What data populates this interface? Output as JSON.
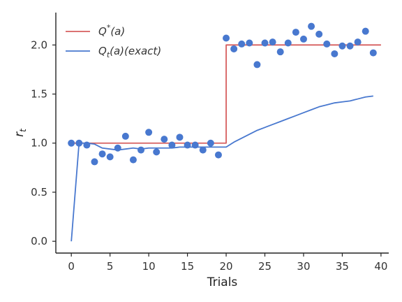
{
  "chart_data": {
    "type": "line",
    "xlabel": "Trials",
    "ylabel": "r_t",
    "xlim": [
      -2,
      41
    ],
    "ylim": [
      -0.12,
      2.33
    ],
    "xticks": [
      0,
      5,
      10,
      15,
      20,
      25,
      30,
      35,
      40
    ],
    "yticks": [
      0.0,
      0.5,
      1.0,
      1.5,
      2.0
    ],
    "xtick_labels": [
      "0",
      "5",
      "10",
      "15",
      "20",
      "25",
      "30",
      "35",
      "40"
    ],
    "ytick_labels": [
      "0.0",
      "0.5",
      "1.0",
      "1.5",
      "2.0"
    ],
    "grid": false,
    "legend_position": "top-left",
    "legend": [
      {
        "label_main": "Q",
        "label_sup": "*",
        "label_rest": "(a)",
        "color": "#d65f5f"
      },
      {
        "label_main": "Q",
        "label_sub": "t",
        "label_rest": "(a)(exact)",
        "color": "#4878cf"
      }
    ],
    "series": [
      {
        "kind": "step",
        "color": "#d65f5f",
        "x": [
          0,
          20,
          20,
          40
        ],
        "y": [
          1.0,
          1.0,
          2.0,
          2.0
        ]
      },
      {
        "kind": "line",
        "color": "#4878cf",
        "x": [
          0,
          1,
          2,
          3,
          4,
          5,
          6,
          7,
          8,
          9,
          10,
          11,
          12,
          13,
          14,
          15,
          16,
          17,
          18,
          19,
          20,
          21,
          22,
          23,
          24,
          25,
          26,
          27,
          28,
          29,
          30,
          31,
          32,
          33,
          34,
          35,
          36,
          37,
          38,
          39
        ],
        "y": [
          0.0,
          1.0,
          1.0,
          0.99,
          0.95,
          0.94,
          0.93,
          0.94,
          0.95,
          0.94,
          0.95,
          0.95,
          0.95,
          0.95,
          0.96,
          0.96,
          0.96,
          0.96,
          0.96,
          0.96,
          0.96,
          1.01,
          1.05,
          1.09,
          1.13,
          1.16,
          1.19,
          1.22,
          1.25,
          1.28,
          1.31,
          1.34,
          1.37,
          1.39,
          1.41,
          1.42,
          1.43,
          1.45,
          1.47,
          1.48
        ]
      },
      {
        "kind": "scatter",
        "color": "#4878cf",
        "x": [
          0,
          1,
          2,
          3,
          4,
          5,
          6,
          7,
          8,
          9,
          10,
          11,
          12,
          13,
          14,
          15,
          16,
          17,
          18,
          19,
          20,
          21,
          22,
          23,
          24,
          25,
          26,
          27,
          28,
          29,
          30,
          31,
          32,
          33,
          34,
          35,
          36,
          37,
          38,
          39
        ],
        "y": [
          1.0,
          1.0,
          0.98,
          0.81,
          0.89,
          0.86,
          0.95,
          1.07,
          0.83,
          0.93,
          1.11,
          0.91,
          1.04,
          0.98,
          1.06,
          0.98,
          0.98,
          0.93,
          1.0,
          0.88,
          2.07,
          1.96,
          2.01,
          2.02,
          1.8,
          2.02,
          2.03,
          1.93,
          2.02,
          2.13,
          2.06,
          2.19,
          2.11,
          2.01,
          1.91,
          1.99,
          1.99,
          2.03,
          2.14,
          1.92
        ]
      }
    ]
  }
}
